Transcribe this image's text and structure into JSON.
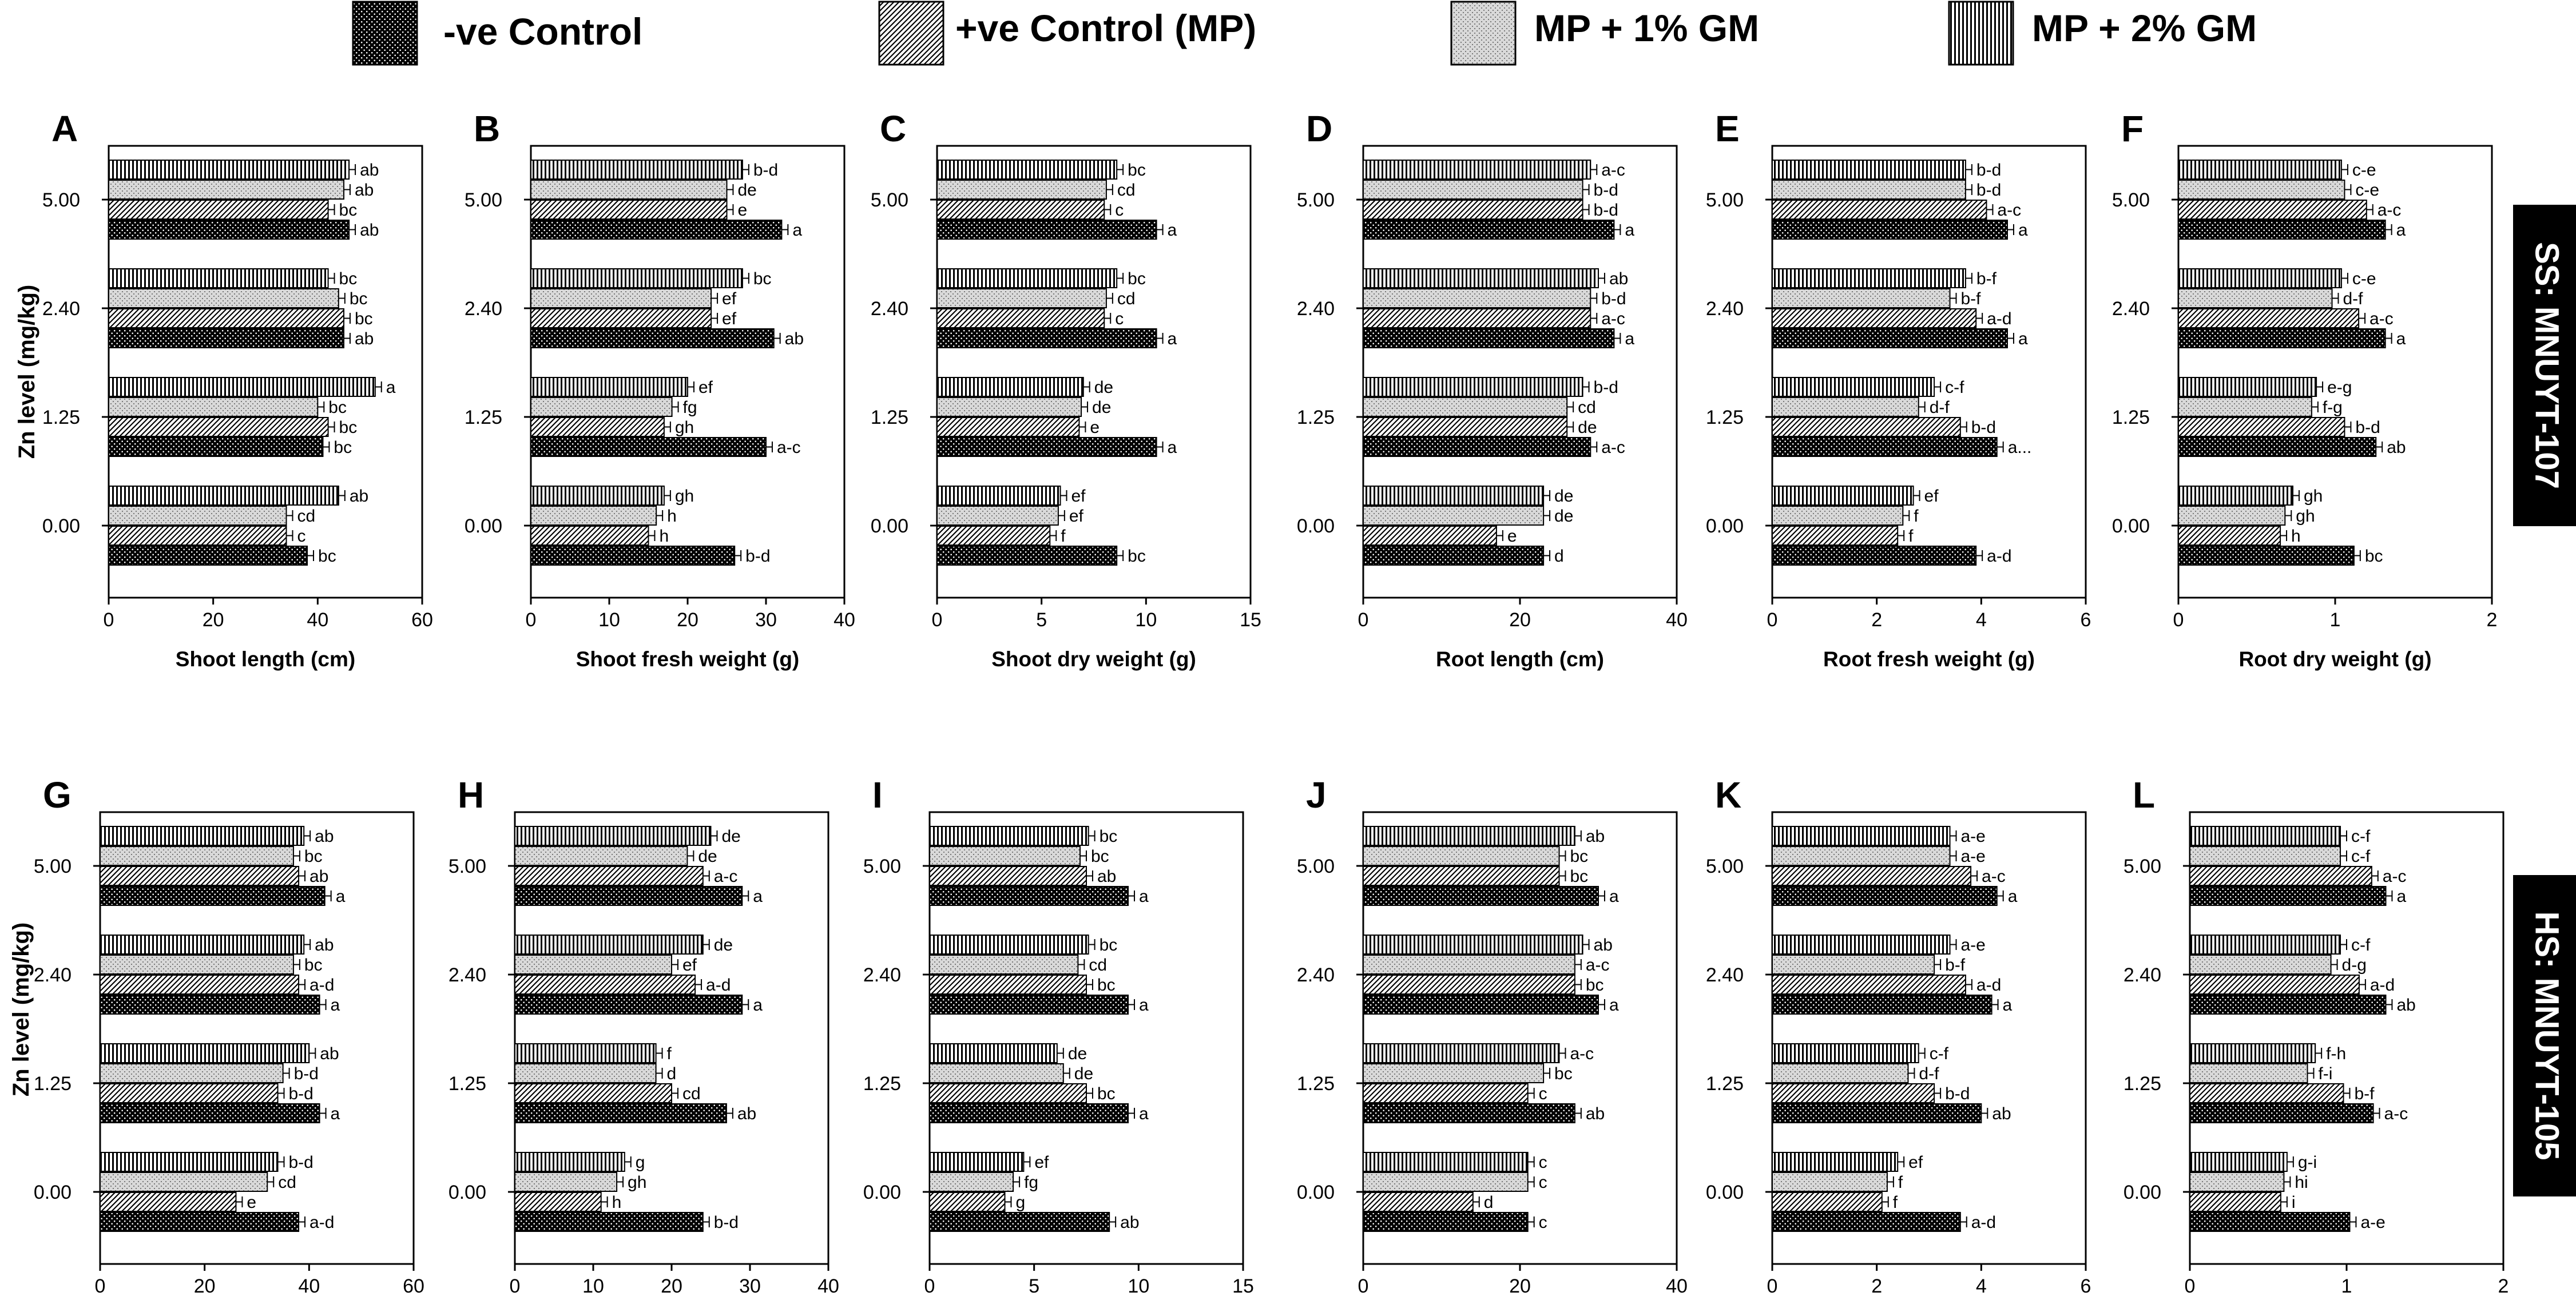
{
  "legend": {
    "items": [
      {
        "name": "-ve Control",
        "pattern": "neg"
      },
      {
        "name": "+ve Control (MP)",
        "pattern": "pos"
      },
      {
        "name": "MP + 1%  GM",
        "pattern": "gm1"
      },
      {
        "name": "MP + 2%  GM",
        "pattern": "gm2"
      }
    ]
  },
  "rows": [
    {
      "side_label": "SS: MNUYT-107",
      "ylabel": "Zn level (mg/kg)"
    },
    {
      "side_label": "HS: MNUYT-105",
      "ylabel": "Zn level (mg/kg)"
    }
  ],
  "colors": {
    "ink": "#000000",
    "paper": "#ffffff",
    "dot_fill": "#d9d9d9"
  },
  "chart_data": [
    {
      "type": "bar",
      "orientation": "horizontal",
      "panel": "A",
      "row": 0,
      "xlabel": "Shoot length (cm)",
      "xlim": [
        0,
        60
      ],
      "xticks": [
        "0",
        "20",
        "40",
        "60"
      ],
      "categories": [
        "0.00",
        "1.25",
        "2.40",
        "5.00"
      ],
      "series": [
        {
          "name": "-ve Control",
          "values": [
            38,
            41,
            45,
            46
          ],
          "letters": [
            "bc",
            "bc",
            "ab",
            "ab"
          ]
        },
        {
          "name": "+ve Control (MP)",
          "values": [
            34,
            42,
            45,
            42
          ],
          "letters": [
            "c",
            "bc",
            "bc",
            "bc"
          ]
        },
        {
          "name": "MP + 1%  GM",
          "values": [
            34,
            40,
            44,
            45
          ],
          "letters": [
            "cd",
            "bc",
            "bc",
            "ab"
          ]
        },
        {
          "name": "MP + 2%  GM",
          "values": [
            44,
            51,
            42,
            46
          ],
          "letters": [
            "ab",
            "a",
            "bc",
            "ab"
          ]
        }
      ]
    },
    {
      "type": "bar",
      "orientation": "horizontal",
      "panel": "B",
      "row": 0,
      "xlabel": "Shoot fresh weight (g)",
      "xlim": [
        0,
        40
      ],
      "xticks": [
        "0",
        "10",
        "20",
        "30",
        "40"
      ],
      "categories": [
        "0.00",
        "1.25",
        "2.40",
        "5.00"
      ],
      "series": [
        {
          "name": "-ve Control",
          "values": [
            26,
            30,
            31,
            32
          ],
          "letters": [
            "b-d",
            "a-c",
            "ab",
            "a"
          ]
        },
        {
          "name": "+ve Control (MP)",
          "values": [
            15,
            17,
            23,
            25
          ],
          "letters": [
            "h",
            "gh",
            "ef",
            "e"
          ]
        },
        {
          "name": "MP + 1%  GM",
          "values": [
            16,
            18,
            23,
            25
          ],
          "letters": [
            "h",
            "fg",
            "ef",
            "de"
          ]
        },
        {
          "name": "MP + 2%  GM",
          "values": [
            17,
            20,
            27,
            27
          ],
          "letters": [
            "gh",
            "ef",
            "bc",
            "b-d"
          ]
        }
      ]
    },
    {
      "type": "bar",
      "orientation": "horizontal",
      "panel": "C",
      "row": 0,
      "xlabel": "Shoot dry weight (g)",
      "xlim": [
        0,
        15
      ],
      "xticks": [
        "0",
        "5",
        "10",
        "15"
      ],
      "categories": [
        "0.00",
        "1.25",
        "2.40",
        "5.00"
      ],
      "series": [
        {
          "name": "-ve Control",
          "values": [
            8.6,
            10.5,
            10.5,
            10.5
          ],
          "letters": [
            "bc",
            "a",
            "a",
            "a"
          ]
        },
        {
          "name": "+ve Control (MP)",
          "values": [
            5.4,
            6.8,
            8.0,
            8.0
          ],
          "letters": [
            "f",
            "e",
            "c",
            "c"
          ]
        },
        {
          "name": "MP + 1%  GM",
          "values": [
            5.8,
            6.9,
            8.1,
            8.1
          ],
          "letters": [
            "ef",
            "de",
            "cd",
            "cd"
          ]
        },
        {
          "name": "MP + 2%  GM",
          "values": [
            5.9,
            7.0,
            8.6,
            8.6
          ],
          "letters": [
            "ef",
            "de",
            "bc",
            "bc"
          ]
        }
      ]
    },
    {
      "type": "bar",
      "orientation": "horizontal",
      "panel": "D",
      "row": 0,
      "xlabel": "Root length (cm)",
      "xlim": [
        0,
        40
      ],
      "xticks": [
        "0",
        "20",
        "40"
      ],
      "categories": [
        "0.00",
        "1.25",
        "2.40",
        "5.00"
      ],
      "series": [
        {
          "name": "-ve Control",
          "values": [
            23,
            29,
            32,
            32
          ],
          "letters": [
            "d",
            "a-c",
            "a",
            "a"
          ]
        },
        {
          "name": "+ve Control (MP)",
          "values": [
            17,
            26,
            29,
            28
          ],
          "letters": [
            "e",
            "de",
            "a-c",
            "b-d"
          ]
        },
        {
          "name": "MP + 1%  GM",
          "values": [
            23,
            26,
            29,
            28
          ],
          "letters": [
            "de",
            "cd",
            "b-d",
            "b-d"
          ]
        },
        {
          "name": "MP + 2%  GM",
          "values": [
            23,
            28,
            30,
            29
          ],
          "letters": [
            "de",
            "b-d",
            "ab",
            "a-c"
          ]
        }
      ]
    },
    {
      "type": "bar",
      "orientation": "horizontal",
      "panel": "E",
      "row": 0,
      "xlabel": "Root fresh weight (g)",
      "xlim": [
        0,
        6
      ],
      "xticks": [
        "0",
        "2",
        "4",
        "6"
      ],
      "categories": [
        "0.00",
        "1.25",
        "2.40",
        "5.00"
      ],
      "series": [
        {
          "name": "-ve Control",
          "values": [
            3.9,
            4.3,
            4.5,
            4.5
          ],
          "letters": [
            "a-d",
            "a...",
            "a",
            "a"
          ]
        },
        {
          "name": "+ve Control (MP)",
          "values": [
            2.4,
            3.6,
            3.9,
            4.1
          ],
          "letters": [
            "f",
            "b-d",
            "a-d",
            "a-c"
          ]
        },
        {
          "name": "MP + 1%  GM",
          "values": [
            2.5,
            2.8,
            3.4,
            3.7
          ],
          "letters": [
            "f",
            "d-f",
            "b-f",
            "b-d"
          ]
        },
        {
          "name": "MP + 2%  GM",
          "values": [
            2.7,
            3.1,
            3.7,
            3.7
          ],
          "letters": [
            "ef",
            "c-f",
            "b-f",
            "b-d"
          ]
        }
      ]
    },
    {
      "type": "bar",
      "orientation": "horizontal",
      "panel": "F",
      "row": 0,
      "xlabel": "Root dry weight (g)",
      "xlim": [
        0,
        2
      ],
      "xticks": [
        "0",
        "1",
        "2"
      ],
      "categories": [
        "0.00",
        "1.25",
        "2.40",
        "5.00"
      ],
      "series": [
        {
          "name": "-ve Control",
          "values": [
            1.12,
            1.26,
            1.32,
            1.32
          ],
          "letters": [
            "bc",
            "ab",
            "a",
            "a"
          ]
        },
        {
          "name": "+ve Control (MP)",
          "values": [
            0.65,
            1.06,
            1.15,
            1.2
          ],
          "letters": [
            "h",
            "b-d",
            "a-c",
            "a-c"
          ]
        },
        {
          "name": "MP + 1%  GM",
          "values": [
            0.68,
            0.85,
            0.98,
            1.06
          ],
          "letters": [
            "gh",
            "f-g",
            "d-f",
            "c-e"
          ]
        },
        {
          "name": "MP + 2%  GM",
          "values": [
            0.73,
            0.88,
            1.04,
            1.04
          ],
          "letters": [
            "gh",
            "e-g",
            "c-e",
            "c-e"
          ]
        }
      ]
    },
    {
      "type": "bar",
      "orientation": "horizontal",
      "panel": "G",
      "row": 1,
      "xlabel": "Shoot length (cm)",
      "xlim": [
        0,
        60
      ],
      "xticks": [
        "0",
        "20",
        "40",
        "60"
      ],
      "categories": [
        "0.00",
        "1.25",
        "2.40",
        "5.00"
      ],
      "series": [
        {
          "name": "-ve Control",
          "values": [
            38,
            42,
            42,
            43
          ],
          "letters": [
            "a-d",
            "a",
            "a",
            "a"
          ]
        },
        {
          "name": "+ve Control (MP)",
          "values": [
            26,
            34,
            38,
            38
          ],
          "letters": [
            "e",
            "b-d",
            "a-d",
            "ab"
          ]
        },
        {
          "name": "MP + 1%  GM",
          "values": [
            32,
            35,
            37,
            37
          ],
          "letters": [
            "cd",
            "b-d",
            "bc",
            "bc"
          ]
        },
        {
          "name": "MP + 2%  GM",
          "values": [
            34,
            40,
            39,
            39
          ],
          "letters": [
            "b-d",
            "ab",
            "ab",
            "ab"
          ]
        }
      ]
    },
    {
      "type": "bar",
      "orientation": "horizontal",
      "panel": "H",
      "row": 1,
      "xlabel": "Shoot fresh weight (g)",
      "xlim": [
        0,
        40
      ],
      "xticks": [
        "0",
        "10",
        "20",
        "30",
        "40"
      ],
      "categories": [
        "0.00",
        "1.25",
        "2.40",
        "5.00"
      ],
      "series": [
        {
          "name": "-ve Control",
          "values": [
            24,
            27,
            29,
            29
          ],
          "letters": [
            "b-d",
            "ab",
            "a",
            "a"
          ]
        },
        {
          "name": "+ve Control (MP)",
          "values": [
            11,
            20,
            23,
            24
          ],
          "letters": [
            "h",
            "cd",
            "a-d",
            "a-c"
          ]
        },
        {
          "name": "MP + 1%  GM",
          "values": [
            13,
            18,
            20,
            22
          ],
          "letters": [
            "gh",
            "d",
            "ef",
            "de"
          ]
        },
        {
          "name": "MP + 2%  GM",
          "values": [
            14,
            18,
            24,
            25
          ],
          "letters": [
            "g",
            "f",
            "de",
            "de"
          ]
        }
      ]
    },
    {
      "type": "bar",
      "orientation": "horizontal",
      "panel": "I",
      "row": 1,
      "xlabel": "Shoot dry weight (g)",
      "xlim": [
        0,
        15
      ],
      "xticks": [
        "0",
        "5",
        "10",
        "15"
      ],
      "categories": [
        "0.00",
        "1.25",
        "2.40",
        "5.00"
      ],
      "series": [
        {
          "name": "-ve Control",
          "values": [
            8.6,
            9.5,
            9.5,
            9.5
          ],
          "letters": [
            "ab",
            "a",
            "a",
            "a"
          ]
        },
        {
          "name": "+ve Control (MP)",
          "values": [
            3.6,
            7.5,
            7.5,
            7.5
          ],
          "letters": [
            "g",
            "bc",
            "bc",
            "ab"
          ]
        },
        {
          "name": "MP + 1%  GM",
          "values": [
            4.0,
            6.4,
            7.1,
            7.2
          ],
          "letters": [
            "fg",
            "de",
            "cd",
            "bc"
          ]
        },
        {
          "name": "MP + 2%  GM",
          "values": [
            4.5,
            6.1,
            7.6,
            7.6
          ],
          "letters": [
            "ef",
            "de",
            "bc",
            "bc"
          ]
        }
      ]
    },
    {
      "type": "bar",
      "orientation": "horizontal",
      "panel": "J",
      "row": 1,
      "xlabel": "Root length (cm)",
      "xlim": [
        0,
        40
      ],
      "xticks": [
        "0",
        "20",
        "40"
      ],
      "categories": [
        "0.00",
        "1.25",
        "2.40",
        "5.00"
      ],
      "series": [
        {
          "name": "-ve Control",
          "values": [
            21,
            27,
            30,
            30
          ],
          "letters": [
            "c",
            "ab",
            "a",
            "a"
          ]
        },
        {
          "name": "+ve Control (MP)",
          "values": [
            14,
            21,
            27,
            25
          ],
          "letters": [
            "d",
            "c",
            "bc",
            "bc"
          ]
        },
        {
          "name": "MP + 1%  GM",
          "values": [
            21,
            23,
            27,
            25
          ],
          "letters": [
            "c",
            "bc",
            "a-c",
            "bc"
          ]
        },
        {
          "name": "MP + 2%  GM",
          "values": [
            21,
            25,
            28,
            27
          ],
          "letters": [
            "c",
            "a-c",
            "ab",
            "ab"
          ]
        }
      ]
    },
    {
      "type": "bar",
      "orientation": "horizontal",
      "panel": "K",
      "row": 1,
      "xlabel": "Root fresh weight (g)",
      "xlim": [
        0,
        6
      ],
      "xticks": [
        "0",
        "2",
        "4",
        "6"
      ],
      "categories": [
        "0.00",
        "1.25",
        "2.40",
        "5.00"
      ],
      "series": [
        {
          "name": "-ve Control",
          "values": [
            3.6,
            4.0,
            4.2,
            4.3
          ],
          "letters": [
            "a-d",
            "ab",
            "a",
            "a"
          ]
        },
        {
          "name": "+ve Control (MP)",
          "values": [
            2.1,
            3.1,
            3.7,
            3.8
          ],
          "letters": [
            "f",
            "b-d",
            "a-d",
            "a-c"
          ]
        },
        {
          "name": "MP + 1%  GM",
          "values": [
            2.2,
            2.6,
            3.1,
            3.4
          ],
          "letters": [
            "f",
            "d-f",
            "b-f",
            "a-e"
          ]
        },
        {
          "name": "MP + 2%  GM",
          "values": [
            2.4,
            2.8,
            3.4,
            3.4
          ],
          "letters": [
            "ef",
            "c-f",
            "a-e",
            "a-e"
          ]
        }
      ]
    },
    {
      "type": "bar",
      "orientation": "horizontal",
      "panel": "L",
      "row": 1,
      "xlabel": "Root dry weight (g)",
      "xlim": [
        0,
        2
      ],
      "xticks": [
        "0",
        "1",
        "2"
      ],
      "categories": [
        "0.00",
        "1.25",
        "2.40",
        "5.00"
      ],
      "series": [
        {
          "name": "-ve Control",
          "values": [
            1.02,
            1.17,
            1.25,
            1.25
          ],
          "letters": [
            "a-e",
            "a-c",
            "ab",
            "a"
          ]
        },
        {
          "name": "+ve Control (MP)",
          "values": [
            0.58,
            0.98,
            1.08,
            1.16
          ],
          "letters": [
            "i",
            "b-f",
            "a-d",
            "a-c"
          ]
        },
        {
          "name": "MP + 1%  GM",
          "values": [
            0.6,
            0.75,
            0.9,
            0.96
          ],
          "letters": [
            "hi",
            "f-i",
            "d-g",
            "c-f"
          ]
        },
        {
          "name": "MP + 2%  GM",
          "values": [
            0.62,
            0.8,
            0.96,
            0.96
          ],
          "letters": [
            "g-i",
            "f-h",
            "c-f",
            "c-f"
          ]
        }
      ]
    }
  ]
}
